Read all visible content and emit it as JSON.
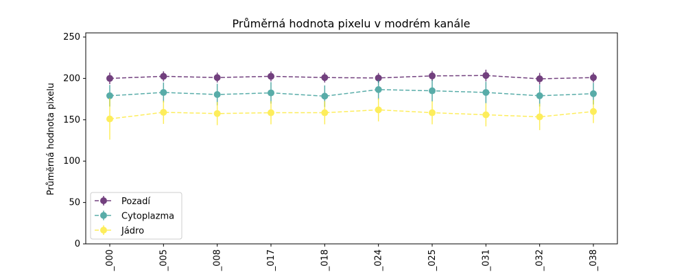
{
  "chart_data": {
    "type": "line",
    "title": "Průměrná hodnota pixelu v modrém kanále",
    "xlabel": "",
    "ylabel": "Průměrná hodnota pixelu",
    "ylim": [
      0,
      255
    ],
    "yticks": [
      0,
      50,
      100,
      150,
      200,
      250
    ],
    "categories": [
      "_000",
      "_005",
      "_008",
      "_017",
      "_018",
      "_024",
      "_025",
      "_031",
      "_032",
      "_038"
    ],
    "legend_position": "lower-left",
    "grid": false,
    "series": [
      {
        "name": "Pozadí",
        "color": "#440154",
        "values": [
          200,
          202.5,
          201,
          202.5,
          201,
          200.5,
          203,
          203.5,
          199.5,
          201
        ],
        "errors": [
          7,
          6,
          6,
          6,
          6,
          6,
          6,
          7,
          7,
          6
        ]
      },
      {
        "name": "Cytoplazma",
        "color": "#21918c",
        "values": [
          179,
          183,
          180.5,
          182.5,
          178.5,
          186.5,
          185,
          183,
          179,
          181.5
        ],
        "errors": [
          13,
          12,
          13,
          13,
          13,
          12,
          13,
          13,
          13,
          13
        ]
      },
      {
        "name": "Jádro",
        "color": "#fde725",
        "values": [
          151,
          159,
          157.5,
          158.5,
          158.5,
          162,
          158.5,
          156,
          153.5,
          160
        ],
        "errors": [
          25,
          14,
          14,
          14,
          14,
          14,
          14,
          14,
          16,
          14
        ]
      }
    ]
  }
}
